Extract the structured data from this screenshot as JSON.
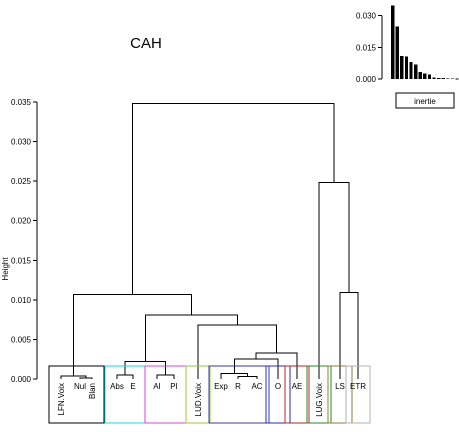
{
  "chart_data": [
    {
      "type": "dendrogram",
      "title": "CAH",
      "ylabel": "Height",
      "ylim": [
        0,
        0.035
      ],
      "yticks": [
        "0.000",
        "0.005",
        "0.010",
        "0.015",
        "0.020",
        "0.025",
        "0.030",
        "0.035"
      ],
      "leaves": [
        "LFN.Voix",
        "Nul",
        "Blan",
        "Abs",
        "E",
        "AI",
        "PI",
        "LUD.Voix",
        "Exp",
        "R",
        "AC",
        "O",
        "AE",
        "LUG.Voix",
        "LS",
        "ETR"
      ],
      "merges": [
        {
          "id": "m_nb",
          "children": [
            "Nul",
            "Blan"
          ],
          "height": 0.00015
        },
        {
          "id": "m_lfn",
          "children": [
            "LFN.Voix",
            "m_nb"
          ],
          "height": 0.00035
        },
        {
          "id": "m_abs",
          "children": [
            "Abs",
            "E"
          ],
          "height": 0.0005
        },
        {
          "id": "m_aipi",
          "children": [
            "AI",
            "PI"
          ],
          "height": 0.0005
        },
        {
          "id": "m_g2",
          "children": [
            "m_abs",
            "m_aipi"
          ],
          "height": 0.0022
        },
        {
          "id": "m_rac",
          "children": [
            "R",
            "AC"
          ],
          "height": 0.0003
        },
        {
          "id": "m_exp",
          "children": [
            "Exp",
            "m_rac"
          ],
          "height": 0.0007
        },
        {
          "id": "m_expo",
          "children": [
            "m_exp",
            "O"
          ],
          "height": 0.0025
        },
        {
          "id": "m_g4",
          "children": [
            "m_expo",
            "AE"
          ],
          "height": 0.0033
        },
        {
          "id": "m_lud",
          "children": [
            "LUD.Voix",
            "m_g4"
          ],
          "height": 0.0068
        },
        {
          "id": "m_g23",
          "children": [
            "m_g2",
            "m_lud"
          ],
          "height": 0.0081
        },
        {
          "id": "m_left",
          "children": [
            "m_lfn",
            "m_g23"
          ],
          "height": 0.0107
        },
        {
          "id": "m_lse",
          "children": [
            "LS",
            "ETR"
          ],
          "height": 0.0109
        },
        {
          "id": "m_right",
          "children": [
            "LUG.Voix",
            "m_lse"
          ],
          "height": 0.0248
        },
        {
          "id": "m_root",
          "children": [
            "m_left",
            "m_right"
          ],
          "height": 0.0348
        }
      ],
      "clusters": [
        {
          "leaves": [
            "LFN.Voix",
            "Nul",
            "Blan"
          ],
          "color": "#000000"
        },
        {
          "leaves": [
            "Abs",
            "E"
          ],
          "color": "#00e5ee"
        },
        {
          "leaves": [
            "AI",
            "PI"
          ],
          "color": "#e040e0"
        },
        {
          "leaves": [
            "LUD.Voix"
          ],
          "color": "#9acd32"
        },
        {
          "leaves": [
            "Exp",
            "R",
            "AC"
          ],
          "color": "#3a3aa8"
        },
        {
          "leaves": [
            "O"
          ],
          "color": "#2828c0"
        },
        {
          "leaves": [
            "AE"
          ],
          "color": "#c02020"
        },
        {
          "leaves": [
            "LUG.Voix"
          ],
          "color": "#228b22"
        },
        {
          "leaves": [
            "LS"
          ],
          "color": "#8b7d35"
        },
        {
          "leaves": [
            "ETR"
          ],
          "color": "#b0b0b0"
        }
      ]
    },
    {
      "type": "bar",
      "legend": "inertie",
      "ylim": [
        0,
        0.035
      ],
      "yticks": [
        "0.000",
        "0.015",
        "0.030"
      ],
      "values": [
        0.0348,
        0.0248,
        0.0109,
        0.0107,
        0.0081,
        0.0068,
        0.0033,
        0.0025,
        0.0022,
        0.0007,
        0.0005,
        0.0005,
        0.00035,
        0.0003,
        0.00015
      ]
    }
  ]
}
